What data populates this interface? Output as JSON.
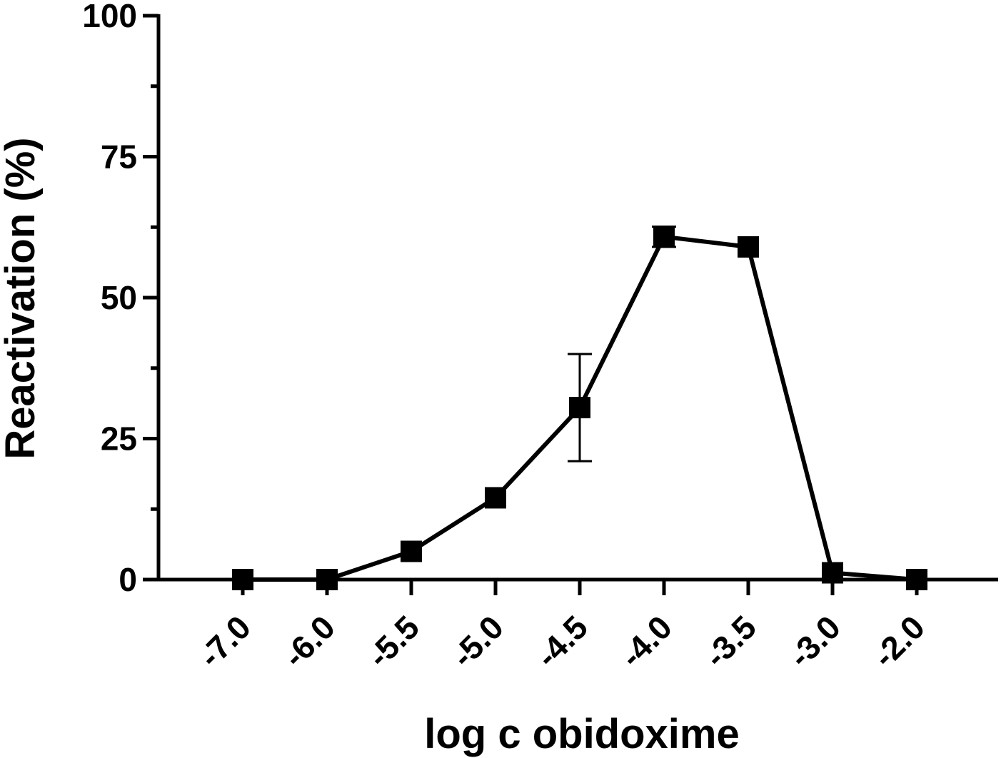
{
  "chart_data": {
    "type": "line",
    "xlabel": "log c obidoxime",
    "ylabel": "Reactivation (%)",
    "categories": [
      "-7.0",
      "-6.0",
      "-5.5",
      "-5.0",
      "-4.5",
      "-4.0",
      "-3.5",
      "-3.0",
      "-2.0"
    ],
    "values": [
      0,
      0,
      5,
      14.5,
      30.5,
      60.8,
      59,
      1.2,
      0
    ],
    "error_bars": [
      null,
      null,
      null,
      null,
      9.5,
      1.8,
      null,
      null,
      null
    ],
    "ylim": [
      0,
      100
    ],
    "yticks": [
      0,
      25,
      50,
      75,
      100
    ],
    "y_minor_step": 12.5,
    "marker": "square",
    "color": "#000000",
    "grid": false,
    "legend": "none"
  }
}
